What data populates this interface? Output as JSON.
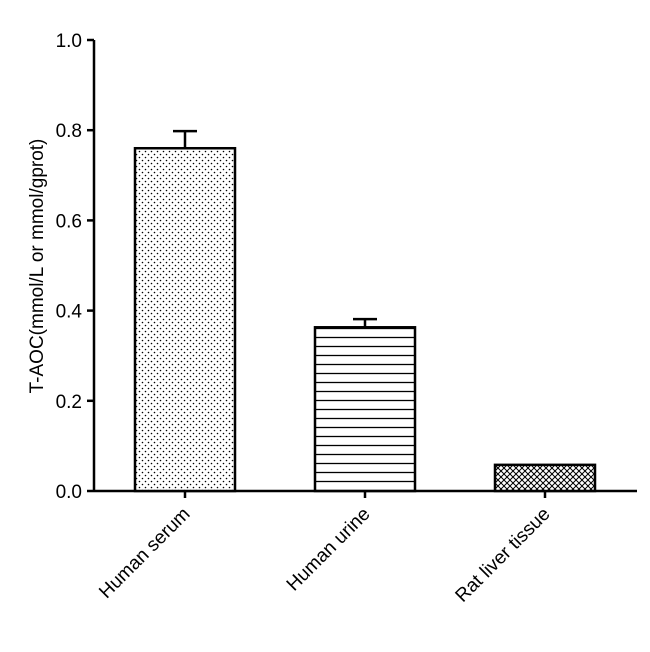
{
  "chart_data": {
    "type": "bar",
    "categories": [
      "Human serum",
      "Human urine",
      "Rat liver tissue"
    ],
    "values": [
      0.76,
      0.363,
      0.058
    ],
    "errors": [
      0.038,
      0.018,
      0.0
    ],
    "patterns": [
      "dots",
      "horizontal-lines",
      "crosshatch"
    ],
    "title": "",
    "xlabel": "",
    "ylabel": "T-AOC(mmol/L or mmol/gprot)",
    "ylim": [
      0,
      1.0
    ],
    "yticks": [
      0.0,
      0.2,
      0.4,
      0.6,
      0.8,
      1.0
    ],
    "ytick_labels": [
      "0.0",
      "0.2",
      "0.4",
      "0.6",
      "0.8",
      "1.0"
    ],
    "grid": false,
    "legend": "none",
    "bar_fill": "#ffffff",
    "bar_stroke": "#000000"
  }
}
